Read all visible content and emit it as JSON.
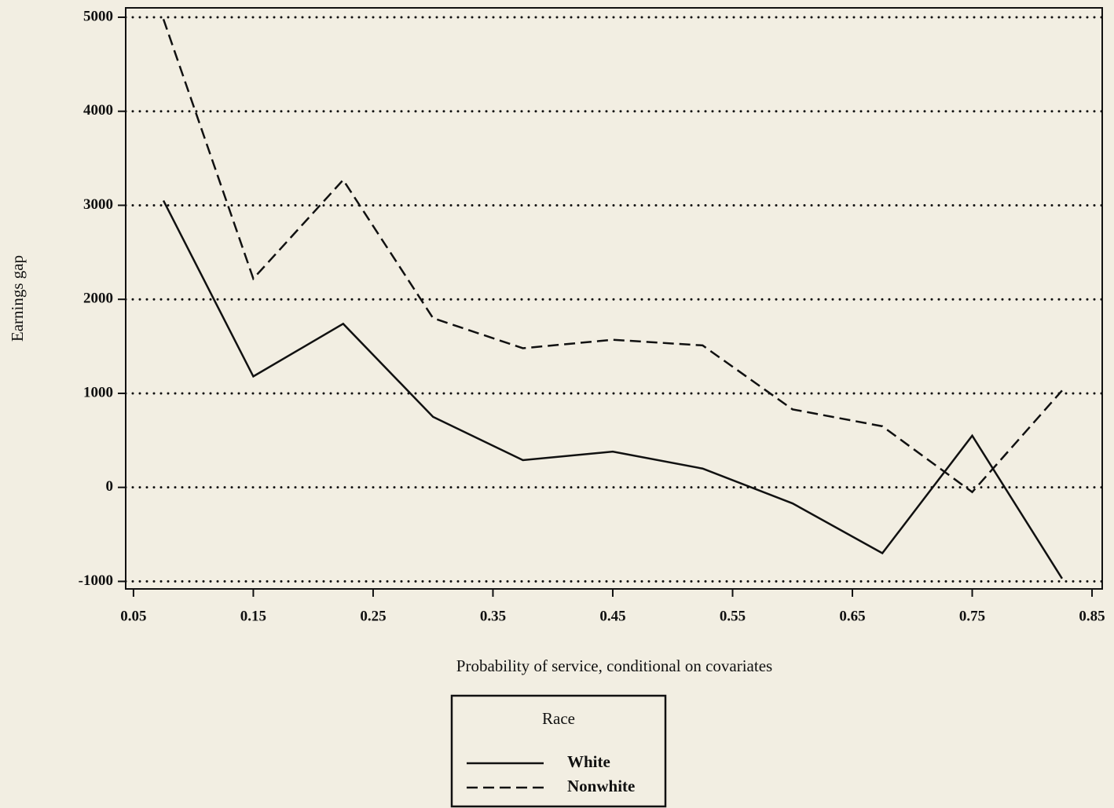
{
  "chart_data": {
    "type": "line",
    "x": [
      0.075,
      0.15,
      0.225,
      0.3,
      0.375,
      0.45,
      0.525,
      0.6,
      0.675,
      0.75,
      0.825
    ],
    "series": [
      {
        "name": "White",
        "color": "#111111",
        "dash": "solid",
        "values": [
          3050,
          1180,
          1740,
          750,
          290,
          380,
          200,
          -170,
          -700,
          550,
          -970
        ]
      },
      {
        "name": "Nonwhite",
        "color": "#111111",
        "dash": "dashed",
        "values": [
          4980,
          2220,
          3270,
          1800,
          1480,
          1570,
          1510,
          830,
          650,
          -50,
          1030
        ]
      }
    ],
    "xlim": [
      0.0435,
      0.8585
    ],
    "xticks": [
      0.05,
      0.15,
      0.25,
      0.35,
      0.45,
      0.55,
      0.65,
      0.75,
      0.85
    ],
    "ylim": [
      -1080,
      5100
    ],
    "yticks": [
      -1000,
      0,
      1000,
      2000,
      3000,
      4000,
      5000
    ],
    "grid": true,
    "x_label": "Probability of service, conditional on covariates",
    "y_label": "Earnings gap",
    "legend_title": "Race",
    "legend_position": "bottom"
  }
}
